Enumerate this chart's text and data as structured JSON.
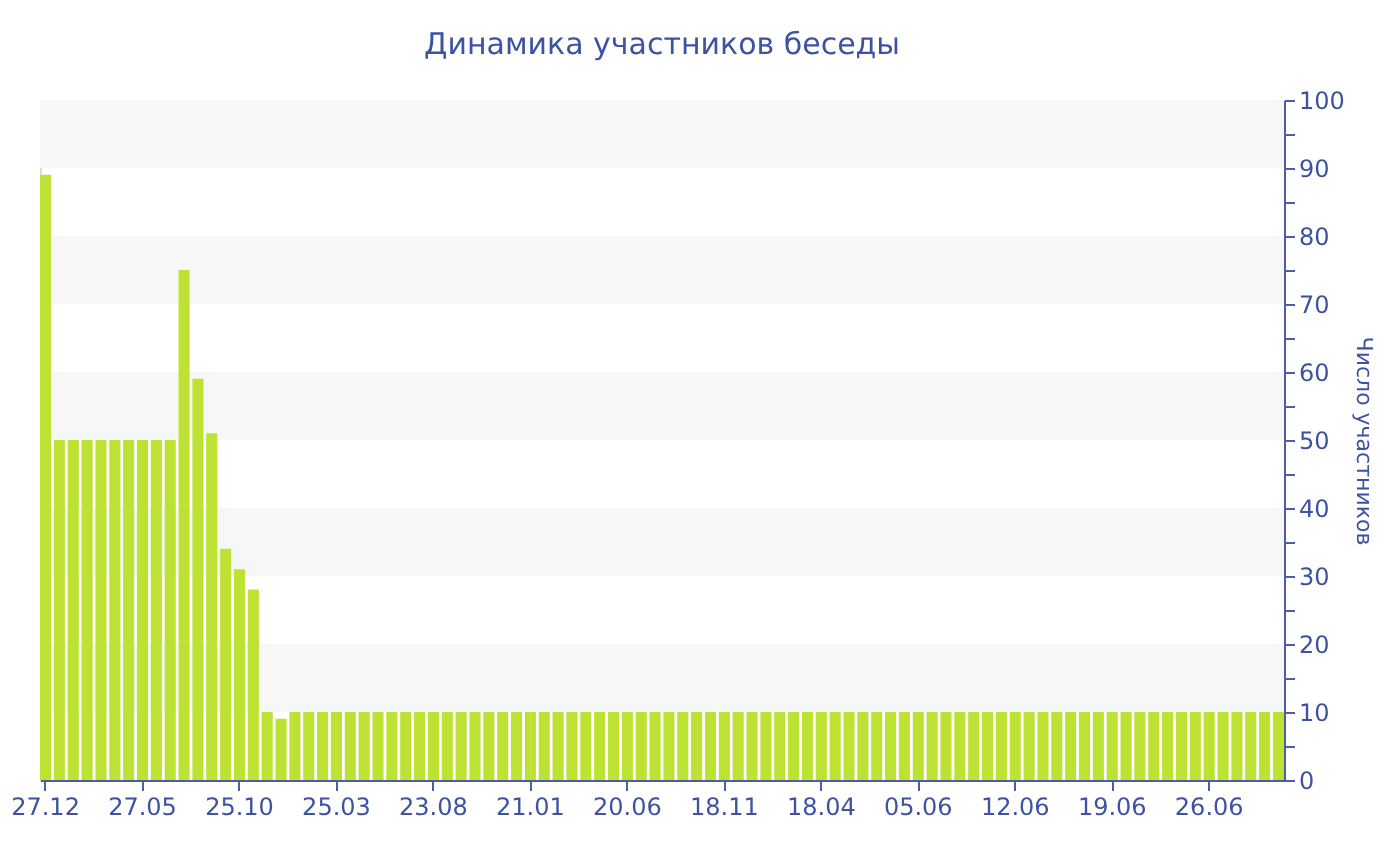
{
  "chart_data": {
    "type": "bar",
    "title": "Динамика участников беседы",
    "ylabel": "Число участников",
    "categories": [
      "27.12",
      null,
      null,
      null,
      null,
      null,
      null,
      "27.05",
      null,
      null,
      null,
      null,
      null,
      null,
      "25.10",
      null,
      null,
      null,
      null,
      null,
      null,
      "25.03",
      null,
      null,
      null,
      null,
      null,
      null,
      "23.08",
      null,
      null,
      null,
      null,
      null,
      null,
      "21.01",
      null,
      null,
      null,
      null,
      null,
      null,
      "20.06",
      null,
      null,
      null,
      null,
      null,
      null,
      "18.11",
      null,
      null,
      null,
      null,
      null,
      null,
      "18.04",
      null,
      null,
      null,
      null,
      null,
      null,
      "05.06",
      null,
      null,
      null,
      null,
      null,
      null,
      "12.06",
      null,
      null,
      null,
      null,
      null,
      null,
      "19.06",
      null,
      null,
      null,
      null,
      null,
      null,
      "26.06",
      null,
      null,
      null,
      null,
      null
    ],
    "values": [
      89,
      50,
      50,
      50,
      50,
      50,
      50,
      50,
      50,
      50,
      75,
      59,
      51,
      34,
      31,
      28,
      10,
      9,
      10,
      10,
      10,
      10,
      10,
      10,
      10,
      10,
      10,
      10,
      10,
      10,
      10,
      10,
      10,
      10,
      10,
      10,
      10,
      10,
      10,
      10,
      10,
      10,
      10,
      10,
      10,
      10,
      10,
      10,
      10,
      10,
      10,
      10,
      10,
      10,
      10,
      10,
      10,
      10,
      10,
      10,
      10,
      10,
      10,
      10,
      10,
      10,
      10,
      10,
      10,
      10,
      10,
      10,
      10,
      10,
      10,
      10,
      10,
      10,
      10,
      10,
      10,
      10,
      10,
      10,
      10,
      10,
      10,
      10,
      10,
      10
    ],
    "color": "#bee233",
    "ylim": [
      0,
      100
    ],
    "yticks": [
      0,
      {
        "value": 5,
        "label": null
      },
      10,
      {
        "value": 15,
        "label": null
      },
      20,
      {
        "value": 25,
        "label": null
      },
      30,
      {
        "value": 35,
        "label": null
      },
      40,
      {
        "value": 45,
        "label": null
      },
      50,
      {
        "value": 55,
        "label": null
      },
      60,
      {
        "value": 65,
        "label": null
      },
      70,
      {
        "value": 75,
        "label": null
      },
      80,
      {
        "value": 85,
        "label": null
      },
      90,
      {
        "value": 95,
        "label": null
      },
      100
    ],
    "bands": [
      {
        "axis": "y",
        "from": 10,
        "to": 20,
        "color": "#f7f7f7"
      },
      {
        "axis": "y",
        "from": 30,
        "to": 40,
        "color": "#f7f7f7"
      },
      {
        "axis": "y",
        "from": 50,
        "to": 60,
        "color": "#f7f7f7"
      },
      {
        "axis": "y",
        "from": 70,
        "to": 80,
        "color": "#f7f7f7"
      },
      {
        "axis": "y",
        "from": 90,
        "to": 100,
        "color": "#f7f7f7"
      }
    ]
  }
}
